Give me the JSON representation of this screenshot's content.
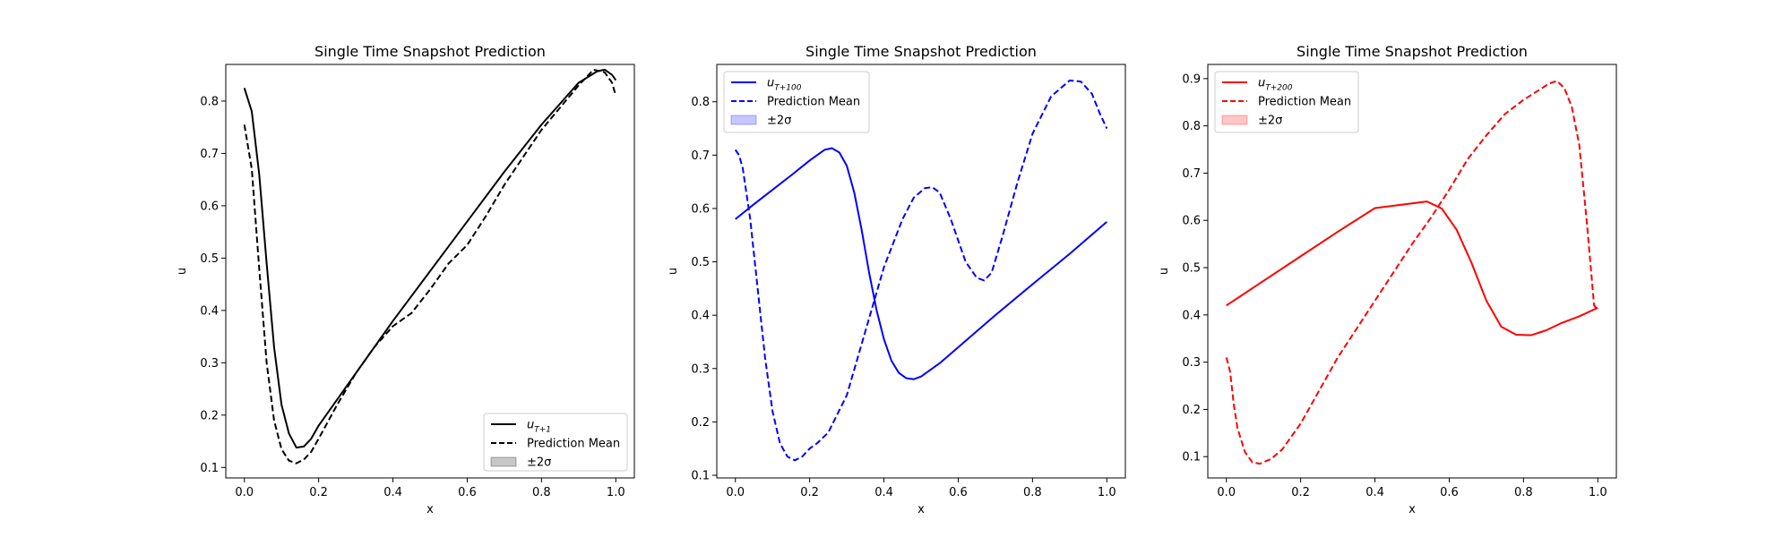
{
  "chart_data": [
    {
      "type": "line",
      "title": "Single Time Snapshot Prediction",
      "xlabel": "x",
      "ylabel": "u",
      "xlim": [
        -0.05,
        1.05
      ],
      "ylim": [
        0.08,
        0.87
      ],
      "xticks": [
        "0.0",
        "0.2",
        "0.4",
        "0.6",
        "0.8",
        "1.0"
      ],
      "yticks": [
        "0.1",
        "0.2",
        "0.3",
        "0.4",
        "0.5",
        "0.6",
        "0.7",
        "0.8"
      ],
      "color": "#000000",
      "legend_position": "lower-right",
      "legend": [
        {
          "label": "u",
          "subscript": "T+1",
          "style": "solid"
        },
        {
          "label": "Prediction Mean",
          "style": "dashed"
        },
        {
          "label": "±2σ",
          "style": "band"
        }
      ],
      "series": [
        {
          "name": "u_{T+1}",
          "style": "solid",
          "x": [
            0.0,
            0.02,
            0.04,
            0.06,
            0.08,
            0.1,
            0.12,
            0.14,
            0.16,
            0.18,
            0.2,
            0.25,
            0.3,
            0.35,
            0.4,
            0.5,
            0.6,
            0.7,
            0.8,
            0.9,
            0.95,
            0.97,
            0.99,
            1.0
          ],
          "y": [
            0.825,
            0.78,
            0.66,
            0.49,
            0.33,
            0.22,
            0.165,
            0.138,
            0.14,
            0.155,
            0.18,
            0.23,
            0.28,
            0.33,
            0.38,
            0.475,
            0.57,
            0.665,
            0.755,
            0.835,
            0.857,
            0.86,
            0.85,
            0.84
          ]
        },
        {
          "name": "Prediction Mean",
          "style": "dashed",
          "x": [
            0.0,
            0.02,
            0.04,
            0.06,
            0.08,
            0.1,
            0.12,
            0.14,
            0.16,
            0.18,
            0.2,
            0.25,
            0.3,
            0.35,
            0.4,
            0.45,
            0.5,
            0.55,
            0.6,
            0.65,
            0.7,
            0.8,
            0.9,
            0.94,
            0.97,
            0.99,
            1.0
          ],
          "y": [
            0.755,
            0.67,
            0.48,
            0.3,
            0.19,
            0.135,
            0.113,
            0.108,
            0.115,
            0.13,
            0.155,
            0.22,
            0.28,
            0.33,
            0.37,
            0.395,
            0.44,
            0.49,
            0.525,
            0.58,
            0.64,
            0.745,
            0.83,
            0.86,
            0.855,
            0.835,
            0.81
          ]
        }
      ]
    },
    {
      "type": "line",
      "title": "Single Time Snapshot Prediction",
      "xlabel": "x",
      "ylabel": "u",
      "xlim": [
        -0.05,
        1.05
      ],
      "ylim": [
        0.095,
        0.87
      ],
      "xticks": [
        "0.0",
        "0.2",
        "0.4",
        "0.6",
        "0.8",
        "1.0"
      ],
      "yticks": [
        "0.1",
        "0.2",
        "0.3",
        "0.4",
        "0.5",
        "0.6",
        "0.7",
        "0.8"
      ],
      "color": "#0000ff",
      "legend_position": "upper-left",
      "legend": [
        {
          "label": "u",
          "subscript": "T+100",
          "style": "solid"
        },
        {
          "label": "Prediction Mean",
          "style": "dashed"
        },
        {
          "label": "±2σ",
          "style": "band"
        }
      ],
      "series": [
        {
          "name": "u_{T+100}",
          "style": "solid",
          "x": [
            0.0,
            0.05,
            0.1,
            0.15,
            0.2,
            0.24,
            0.26,
            0.28,
            0.3,
            0.32,
            0.34,
            0.36,
            0.38,
            0.4,
            0.42,
            0.44,
            0.46,
            0.48,
            0.5,
            0.55,
            0.6,
            0.7,
            0.8,
            0.9,
            1.0
          ],
          "y": [
            0.58,
            0.608,
            0.635,
            0.662,
            0.69,
            0.71,
            0.713,
            0.705,
            0.68,
            0.63,
            0.56,
            0.48,
            0.41,
            0.355,
            0.315,
            0.292,
            0.282,
            0.28,
            0.285,
            0.31,
            0.34,
            0.4,
            0.458,
            0.515,
            0.575
          ]
        },
        {
          "name": "Prediction Mean",
          "style": "dashed",
          "x": [
            0.0,
            0.01,
            0.02,
            0.04,
            0.06,
            0.08,
            0.1,
            0.12,
            0.14,
            0.16,
            0.18,
            0.2,
            0.22,
            0.25,
            0.3,
            0.35,
            0.4,
            0.45,
            0.48,
            0.51,
            0.53,
            0.55,
            0.58,
            0.62,
            0.65,
            0.67,
            0.69,
            0.72,
            0.76,
            0.8,
            0.85,
            0.9,
            0.93,
            0.96,
            0.98,
            1.0
          ],
          "y": [
            0.71,
            0.7,
            0.675,
            0.58,
            0.45,
            0.32,
            0.22,
            0.16,
            0.135,
            0.128,
            0.135,
            0.15,
            0.16,
            0.18,
            0.25,
            0.37,
            0.49,
            0.58,
            0.62,
            0.638,
            0.64,
            0.63,
            0.58,
            0.5,
            0.47,
            0.465,
            0.48,
            0.55,
            0.65,
            0.74,
            0.81,
            0.84,
            0.838,
            0.815,
            0.78,
            0.75
          ]
        }
      ]
    },
    {
      "type": "line",
      "title": "Single Time Snapshot Prediction",
      "xlabel": "x",
      "ylabel": "u",
      "xlim": [
        -0.05,
        1.05
      ],
      "ylim": [
        0.055,
        0.93
      ],
      "xticks": [
        "0.0",
        "0.2",
        "0.4",
        "0.6",
        "0.8",
        "1.0"
      ],
      "yticks": [
        "0.1",
        "0.2",
        "0.3",
        "0.4",
        "0.5",
        "0.6",
        "0.7",
        "0.8",
        "0.9"
      ],
      "color": "#ff0000",
      "legend_position": "upper-left",
      "legend": [
        {
          "label": "u",
          "subscript": "T+200",
          "style": "solid"
        },
        {
          "label": "Prediction Mean",
          "style": "dashed"
        },
        {
          "label": "±2σ",
          "style": "band"
        }
      ],
      "series": [
        {
          "name": "u_{T+200}",
          "style": "solid",
          "x": [
            0.0,
            0.1,
            0.2,
            0.3,
            0.4,
            0.5,
            0.54,
            0.58,
            0.62,
            0.66,
            0.7,
            0.74,
            0.78,
            0.82,
            0.86,
            0.9,
            0.95,
            1.0
          ],
          "y": [
            0.42,
            0.472,
            0.524,
            0.576,
            0.626,
            0.636,
            0.64,
            0.625,
            0.58,
            0.51,
            0.43,
            0.375,
            0.358,
            0.357,
            0.367,
            0.382,
            0.397,
            0.415
          ]
        },
        {
          "name": "Prediction Mean",
          "style": "dashed",
          "x": [
            0.0,
            0.01,
            0.02,
            0.03,
            0.05,
            0.07,
            0.09,
            0.12,
            0.15,
            0.2,
            0.25,
            0.3,
            0.35,
            0.4,
            0.45,
            0.5,
            0.55,
            0.6,
            0.65,
            0.7,
            0.75,
            0.8,
            0.84,
            0.87,
            0.89,
            0.91,
            0.93,
            0.95,
            0.97,
            0.99,
            1.0
          ],
          "y": [
            0.31,
            0.28,
            0.21,
            0.16,
            0.11,
            0.088,
            0.085,
            0.095,
            0.115,
            0.17,
            0.24,
            0.31,
            0.37,
            0.43,
            0.49,
            0.55,
            0.605,
            0.665,
            0.73,
            0.78,
            0.825,
            0.855,
            0.875,
            0.89,
            0.895,
            0.88,
            0.84,
            0.76,
            0.6,
            0.42,
            0.41
          ]
        }
      ]
    }
  ]
}
